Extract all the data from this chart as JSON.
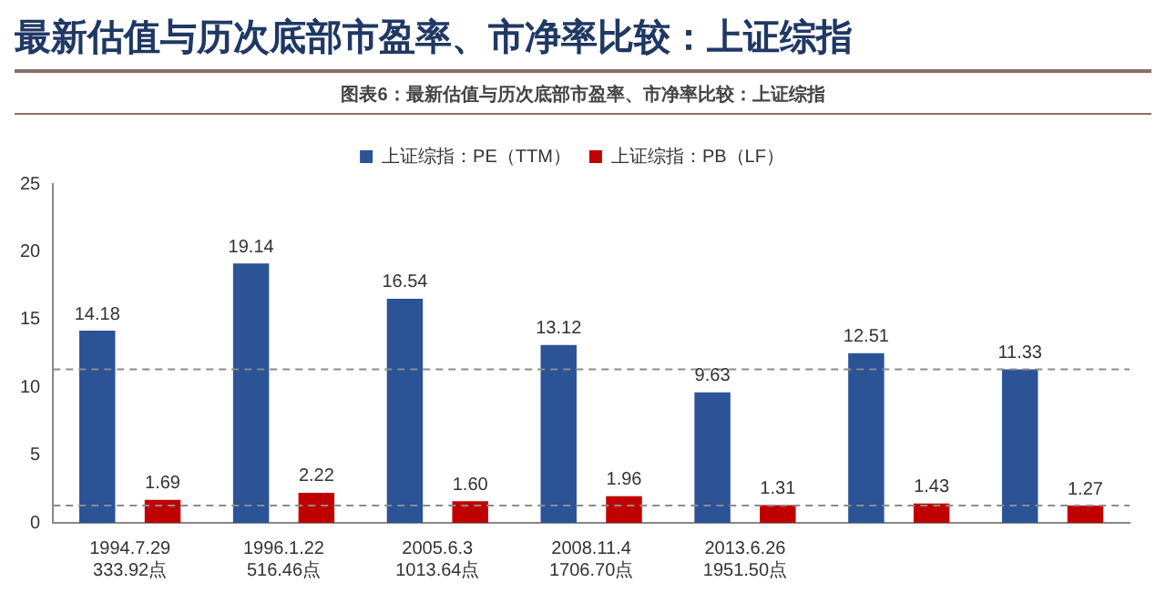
{
  "chart_data": {
    "type": "bar",
    "title": "最新估值与历次底部市盈率、市净率比较：上证综指",
    "subtitle": "图表6：最新估值与历次底部市盈率、市净率比较：上证综指",
    "categories": [
      "1994.7.29\n333.92点",
      "1996.1.22\n516.46点",
      "2005.6.3\n1013.64点",
      "2008.11.4\n1706.70点",
      "2013.6.26\n1951.50点",
      null,
      null
    ],
    "series": [
      {
        "name": "上证综指：PE（TTM）",
        "color": "#2b5396",
        "values": [
          14.18,
          19.14,
          16.54,
          13.12,
          9.63,
          12.51,
          11.33
        ],
        "value_labels": [
          "14.18",
          "19.14",
          "16.54",
          "13.12",
          "9.63",
          "12.51",
          "11.33"
        ]
      },
      {
        "name": "上证综指：PB（LF）",
        "color": "#c00000",
        "values": [
          1.69,
          2.22,
          1.6,
          1.96,
          1.31,
          1.43,
          1.27
        ],
        "value_labels": [
          "1.69",
          "2.22",
          "1.60",
          "1.96",
          "1.31",
          "1.43",
          "1.27"
        ]
      }
    ],
    "ylim": [
      0,
      25
    ],
    "yticks": [
      0,
      5,
      10,
      15,
      20,
      25
    ],
    "grid": false,
    "legend": "top",
    "ref_lines": [
      {
        "axis": "y",
        "value": 11.33,
        "color": "#8c8c8c",
        "line_style": "dashed"
      },
      {
        "axis": "y",
        "value": 1.27,
        "color": "#8c8c8c",
        "line_style": "dashed"
      }
    ]
  }
}
